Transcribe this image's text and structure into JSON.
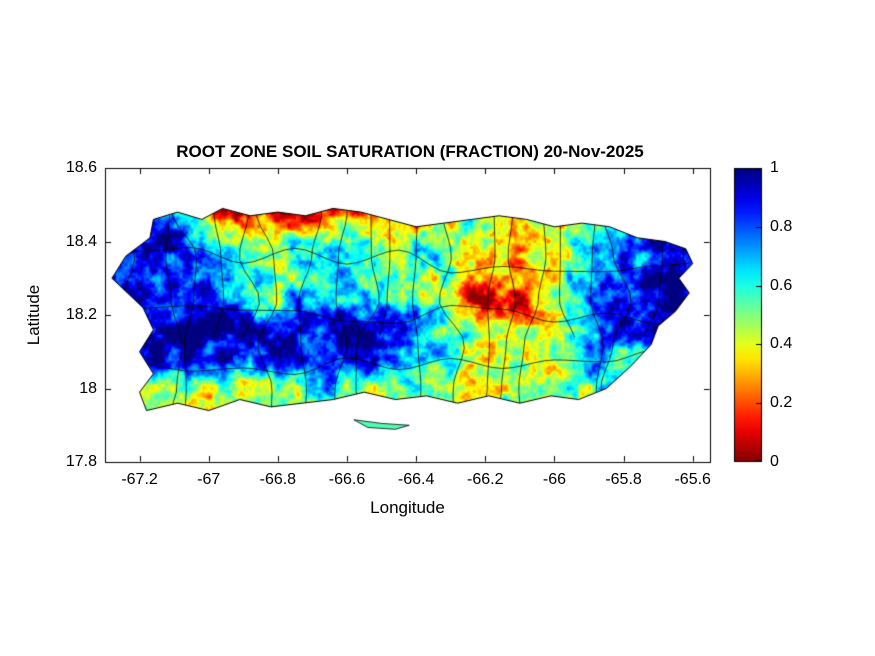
{
  "chart_data": {
    "type": "heatmap",
    "title": "ROOT ZONE SOIL SATURATION (FRACTION) 20-Nov-2025",
    "xlabel": "Longitude",
    "ylabel": "Latitude",
    "region": "Puerto Rico",
    "xlim": [
      -67.3,
      -65.55
    ],
    "ylim": [
      17.8,
      18.6
    ],
    "x_ticks": [
      -67.2,
      -67,
      -66.8,
      -66.6,
      -66.4,
      -66.2,
      -66,
      -65.8,
      -65.6
    ],
    "x_tick_labels": [
      "-67.2",
      "-67",
      "-66.8",
      "-66.6",
      "-66.4",
      "-66.2",
      "-66",
      "-65.8",
      "-65.6"
    ],
    "y_ticks": [
      17.8,
      18,
      18.2,
      18.4,
      18.6
    ],
    "y_tick_labels": [
      "17.8",
      "18",
      "18.2",
      "18.4",
      "18.6"
    ],
    "grid_on": false,
    "legend": "none",
    "colorbar": {
      "position": "right",
      "colormap": "jet-reversed",
      "ticks": [
        0,
        0.2,
        0.4,
        0.6,
        0.8,
        1
      ],
      "tick_labels": [
        "0",
        "0.2",
        "0.4",
        "0.6",
        "0.8",
        "1"
      ],
      "top_color": "#00008f",
      "bottom_color": "#7f0000",
      "value_range": [
        0,
        1
      ]
    },
    "colors": {
      "background": "#ffffff",
      "axis": "#000000",
      "boundary_lines": "#000000"
    },
    "saturation_grid": {
      "description": "Approximate root-zone soil saturation fraction sampled on a coarse lon/lat grid (rows north to south)",
      "lon_min": -67.3,
      "lon_max": -65.55,
      "lat_min": 17.85,
      "lat_max": 18.55,
      "nx": 24,
      "ny": 10,
      "values_rows_north_to_south": [
        [
          0.75,
          0.8,
          0.75,
          0.55,
          0.3,
          0.2,
          0.15,
          0.2,
          0.25,
          0.2,
          0.15,
          0.2,
          0.3,
          0.25,
          0.2,
          0.3,
          0.25,
          0.2,
          0.3,
          0.45,
          0.6,
          0.7,
          0.75,
          0.75
        ],
        [
          0.8,
          0.85,
          0.7,
          0.5,
          0.25,
          0.15,
          0.1,
          0.15,
          0.2,
          0.15,
          0.2,
          0.25,
          0.2,
          0.3,
          0.35,
          0.25,
          0.2,
          0.35,
          0.3,
          0.45,
          0.65,
          0.75,
          0.8,
          0.8
        ],
        [
          0.9,
          0.95,
          0.95,
          0.9,
          0.75,
          0.6,
          0.55,
          0.5,
          0.55,
          0.6,
          0.5,
          0.45,
          0.4,
          0.45,
          0.35,
          0.3,
          0.35,
          0.45,
          0.5,
          0.65,
          0.85,
          0.9,
          0.85,
          0.8
        ],
        [
          0.85,
          0.9,
          0.9,
          0.85,
          0.7,
          0.6,
          0.65,
          0.6,
          0.55,
          0.6,
          0.55,
          0.5,
          0.45,
          0.5,
          0.35,
          0.25,
          0.3,
          0.45,
          0.55,
          0.75,
          0.9,
          0.95,
          0.9,
          0.85
        ],
        [
          0.85,
          0.9,
          0.85,
          0.8,
          0.75,
          0.7,
          0.6,
          0.65,
          0.6,
          0.65,
          0.6,
          0.55,
          0.5,
          0.55,
          0.3,
          0.2,
          0.25,
          0.35,
          0.6,
          0.8,
          0.95,
          0.95,
          0.9,
          0.85
        ],
        [
          0.8,
          0.85,
          0.9,
          0.95,
          0.9,
          0.85,
          0.9,
          0.85,
          0.8,
          0.85,
          0.9,
          0.85,
          0.8,
          0.75,
          0.6,
          0.45,
          0.4,
          0.45,
          0.55,
          0.7,
          0.85,
          0.9,
          0.85,
          0.8
        ],
        [
          0.7,
          0.8,
          0.85,
          0.9,
          0.85,
          0.8,
          0.85,
          0.9,
          0.85,
          0.8,
          0.85,
          0.8,
          0.75,
          0.7,
          0.55,
          0.5,
          0.45,
          0.5,
          0.55,
          0.6,
          0.7,
          0.75,
          0.7,
          0.65
        ],
        [
          0.5,
          0.45,
          0.4,
          0.35,
          0.3,
          0.4,
          0.5,
          0.45,
          0.55,
          0.5,
          0.45,
          0.55,
          0.5,
          0.45,
          0.4,
          0.5,
          0.55,
          0.5,
          0.45,
          0.5,
          0.55,
          0.6,
          0.6,
          0.6
        ],
        [
          0.45,
          0.4,
          0.35,
          0.3,
          0.35,
          0.45,
          0.5,
          0.45,
          0.5,
          0.45,
          0.4,
          0.5,
          0.45,
          0.4,
          0.45,
          0.5,
          0.5,
          0.45,
          0.5,
          0.5,
          0.55,
          0.55,
          0.55,
          0.55
        ],
        [
          0.45,
          0.4,
          0.35,
          0.3,
          0.35,
          0.45,
          0.5,
          0.45,
          0.5,
          0.45,
          0.4,
          0.5,
          0.45,
          0.4,
          0.45,
          0.5,
          0.5,
          0.45,
          0.5,
          0.5,
          0.55,
          0.55,
          0.55,
          0.55
        ]
      ]
    },
    "island_outline": [
      [
        -67.16,
        18.46
      ],
      [
        -67.09,
        18.48
      ],
      [
        -67.02,
        18.46
      ],
      [
        -66.96,
        18.49
      ],
      [
        -66.88,
        18.47
      ],
      [
        -66.8,
        18.48
      ],
      [
        -66.72,
        18.47
      ],
      [
        -66.64,
        18.49
      ],
      [
        -66.56,
        18.48
      ],
      [
        -66.48,
        18.46
      ],
      [
        -66.4,
        18.44
      ],
      [
        -66.32,
        18.45
      ],
      [
        -66.24,
        18.46
      ],
      [
        -66.16,
        18.47
      ],
      [
        -66.08,
        18.46
      ],
      [
        -66.0,
        18.44
      ],
      [
        -65.92,
        18.45
      ],
      [
        -65.84,
        18.44
      ],
      [
        -65.76,
        18.41
      ],
      [
        -65.68,
        18.4
      ],
      [
        -65.62,
        18.38
      ],
      [
        -65.6,
        18.34
      ],
      [
        -65.64,
        18.3
      ],
      [
        -65.61,
        18.26
      ],
      [
        -65.65,
        18.21
      ],
      [
        -65.7,
        18.17
      ],
      [
        -65.72,
        18.12
      ],
      [
        -65.78,
        18.06
      ],
      [
        -65.85,
        18.0
      ],
      [
        -65.93,
        17.97
      ],
      [
        -66.01,
        17.98
      ],
      [
        -66.1,
        17.96
      ],
      [
        -66.19,
        17.98
      ],
      [
        -66.28,
        17.96
      ],
      [
        -66.37,
        17.98
      ],
      [
        -66.46,
        17.97
      ],
      [
        -66.55,
        17.99
      ],
      [
        -66.64,
        17.97
      ],
      [
        -66.73,
        17.96
      ],
      [
        -66.82,
        17.95
      ],
      [
        -66.91,
        17.97
      ],
      [
        -67.0,
        17.94
      ],
      [
        -67.09,
        17.96
      ],
      [
        -67.18,
        17.94
      ],
      [
        -67.2,
        17.99
      ],
      [
        -67.16,
        18.04
      ],
      [
        -67.2,
        18.1
      ],
      [
        -67.16,
        18.16
      ],
      [
        -67.19,
        18.22
      ],
      [
        -67.28,
        18.3
      ],
      [
        -67.24,
        18.36
      ],
      [
        -67.17,
        18.41
      ]
    ],
    "islets": [
      [
        [
          -66.58,
          17.915
        ],
        [
          -66.5,
          17.905
        ],
        [
          -66.42,
          17.9
        ],
        [
          -66.46,
          17.889
        ],
        [
          -66.54,
          17.894
        ]
      ]
    ]
  }
}
